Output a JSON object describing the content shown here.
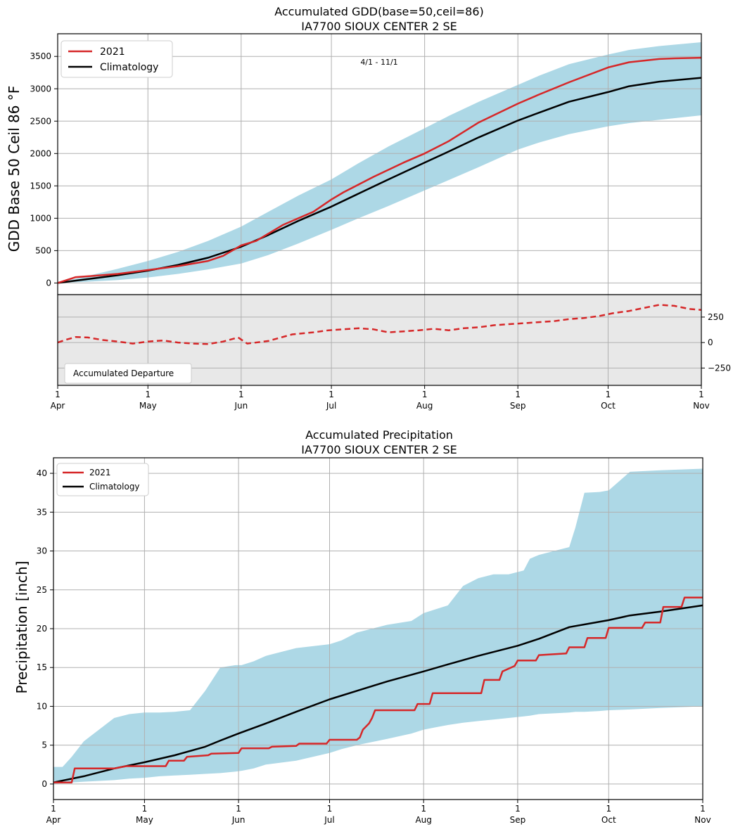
{
  "chart_data": [
    {
      "type": "line",
      "title": "Accumulated GDD(base=50,ceil=86)",
      "subtitle": "IA7700 SIOUX CENTER 2 SE",
      "annotation": "4/1 - 11/1",
      "ylabel": "GDD Base 50 Ceil 86 °F",
      "ylim": [
        -180,
        3850
      ],
      "yticks": [
        0,
        500,
        1000,
        1500,
        2000,
        2500,
        3000,
        3500
      ],
      "xlim": [
        0,
        214
      ],
      "xticks": [
        {
          "x": 0,
          "day": "1",
          "month": "Apr"
        },
        {
          "x": 30,
          "day": "1",
          "month": "May"
        },
        {
          "x": 61,
          "day": "1",
          "month": "Jun"
        },
        {
          "x": 91,
          "day": "1",
          "month": "Jul"
        },
        {
          "x": 122,
          "day": "1",
          "month": "Aug"
        },
        {
          "x": 153,
          "day": "1",
          "month": "Sep"
        },
        {
          "x": 183,
          "day": "1",
          "month": "Oct"
        },
        {
          "x": 214,
          "day": "1",
          "month": "Nov"
        }
      ],
      "grid": true,
      "legend_position": "top-left",
      "series": [
        {
          "name": "2021",
          "color": "#d62728",
          "style": "solid",
          "x": [
            0,
            6,
            12,
            20,
            30,
            40,
            50,
            55,
            61,
            66,
            75,
            85,
            91,
            95,
            105,
            115,
            122,
            130,
            140,
            153,
            160,
            170,
            183,
            190,
            200,
            205,
            214
          ],
          "y": [
            0,
            90,
            110,
            140,
            200,
            260,
            340,
            420,
            580,
            650,
            900,
            1100,
            1290,
            1400,
            1640,
            1860,
            2000,
            2190,
            2480,
            2770,
            2910,
            3100,
            3330,
            3410,
            3460,
            3470,
            3480
          ]
        },
        {
          "name": "Climatology",
          "color": "#000000",
          "style": "solid",
          "x": [
            0,
            10,
            20,
            30,
            40,
            50,
            61,
            70,
            80,
            91,
            100,
            110,
            122,
            130,
            140,
            153,
            160,
            170,
            183,
            190,
            200,
            214
          ],
          "y": [
            0,
            60,
            120,
            190,
            280,
            390,
            560,
            740,
            960,
            1180,
            1380,
            1600,
            1860,
            2030,
            2250,
            2510,
            2630,
            2800,
            2950,
            3040,
            3110,
            3170
          ]
        }
      ],
      "range_band": {
        "color": "#add8e6",
        "x": [
          0,
          10,
          20,
          30,
          40,
          50,
          61,
          70,
          80,
          91,
          100,
          110,
          122,
          130,
          140,
          153,
          160,
          170,
          183,
          190,
          200,
          214
        ],
        "upper": [
          0,
          110,
          220,
          340,
          480,
          650,
          870,
          1100,
          1350,
          1600,
          1850,
          2110,
          2390,
          2580,
          2800,
          3060,
          3200,
          3380,
          3530,
          3600,
          3660,
          3720
        ],
        "lower": [
          0,
          20,
          45,
          85,
          140,
          210,
          300,
          430,
          610,
          820,
          1000,
          1190,
          1430,
          1590,
          1790,
          2060,
          2170,
          2300,
          2420,
          2470,
          2520,
          2590
        ]
      }
    },
    {
      "type": "line",
      "title": "",
      "legend_label": "Accumulated Departure",
      "ylim": [
        -420,
        470
      ],
      "yticks": [
        -250,
        0,
        250
      ],
      "ytick_labels": [
        "−250",
        "0",
        "250"
      ],
      "y_axis_side": "right",
      "background": "#e8e8e8",
      "grid": true,
      "series": [
        {
          "name": "Accumulated Departure",
          "color": "#d62728",
          "style": "dashed",
          "x": [
            0,
            3,
            6,
            10,
            15,
            20,
            25,
            30,
            35,
            40,
            45,
            50,
            55,
            60,
            63,
            70,
            78,
            85,
            90,
            95,
            100,
            105,
            110,
            115,
            120,
            125,
            130,
            135,
            140,
            145,
            150,
            155,
            160,
            165,
            170,
            175,
            180,
            185,
            190,
            195,
            200,
            205,
            210,
            214
          ],
          "y": [
            0,
            30,
            55,
            50,
            25,
            10,
            -10,
            10,
            20,
            0,
            -10,
            -15,
            10,
            50,
            -10,
            15,
            80,
            100,
            120,
            130,
            140,
            130,
            100,
            110,
            120,
            135,
            120,
            140,
            150,
            170,
            180,
            190,
            200,
            210,
            230,
            240,
            260,
            290,
            310,
            340,
            370,
            360,
            330,
            320
          ]
        }
      ]
    },
    {
      "type": "line",
      "title": "Accumulated Precipitation",
      "subtitle": "IA7700 SIOUX CENTER 2 SE",
      "ylabel": "Precipitation [inch]",
      "ylim": [
        -2,
        42
      ],
      "yticks": [
        0,
        5,
        10,
        15,
        20,
        25,
        30,
        35,
        40
      ],
      "xlim": [
        0,
        214
      ],
      "xticks": [
        {
          "x": 0,
          "day": "1",
          "month": "Apr"
        },
        {
          "x": 30,
          "day": "1",
          "month": "May"
        },
        {
          "x": 61,
          "day": "1",
          "month": "Jun"
        },
        {
          "x": 91,
          "day": "1",
          "month": "Jul"
        },
        {
          "x": 122,
          "day": "1",
          "month": "Aug"
        },
        {
          "x": 153,
          "day": "1",
          "month": "Sep"
        },
        {
          "x": 183,
          "day": "1",
          "month": "Oct"
        },
        {
          "x": 214,
          "day": "1",
          "month": "Nov"
        }
      ],
      "grid": true,
      "legend_position": "top-left",
      "series": [
        {
          "name": "2021",
          "color": "#d62728",
          "style": "step",
          "x": [
            0,
            6,
            7,
            20,
            24,
            37,
            38,
            43,
            44,
            51,
            52,
            61,
            62,
            71,
            72,
            80,
            81,
            90,
            91,
            100,
            101,
            102,
            104,
            105,
            106,
            119,
            120,
            124,
            125,
            141,
            142,
            147,
            148,
            152,
            153,
            159,
            160,
            169,
            170,
            175,
            176,
            182,
            183,
            194,
            195,
            200,
            201,
            207,
            208,
            214
          ],
          "y": [
            0.2,
            0.2,
            2.0,
            2.0,
            2.3,
            2.3,
            3.0,
            3.0,
            3.5,
            3.7,
            3.9,
            4.0,
            4.6,
            4.6,
            4.8,
            4.9,
            5.2,
            5.2,
            5.7,
            5.7,
            6.0,
            7.0,
            7.8,
            8.5,
            9.5,
            9.5,
            10.3,
            10.3,
            11.7,
            11.7,
            13.4,
            13.4,
            14.5,
            15.2,
            15.9,
            15.9,
            16.6,
            16.8,
            17.6,
            17.6,
            18.8,
            18.8,
            20.1,
            20.1,
            20.8,
            20.8,
            22.8,
            22.8,
            24.0,
            24.0
          ]
        },
        {
          "name": "Climatology",
          "color": "#000000",
          "style": "solid",
          "x": [
            0,
            10,
            20,
            30,
            40,
            50,
            55,
            61,
            70,
            80,
            91,
            100,
            110,
            122,
            130,
            140,
            153,
            160,
            170,
            183,
            190,
            200,
            214
          ],
          "y": [
            0.2,
            1.0,
            2.0,
            2.8,
            3.7,
            4.8,
            5.6,
            6.5,
            7.8,
            9.3,
            10.9,
            12.0,
            13.2,
            14.5,
            15.4,
            16.5,
            17.8,
            18.7,
            20.2,
            21.1,
            21.7,
            22.2,
            23.0
          ]
        }
      ],
      "range_band": {
        "color": "#add8e6",
        "x": [
          0,
          3,
          6,
          10,
          15,
          20,
          25,
          30,
          35,
          40,
          45,
          50,
          55,
          60,
          62,
          66,
          70,
          80,
          91,
          95,
          100,
          110,
          118,
          122,
          126,
          130,
          135,
          140,
          145,
          150,
          155,
          157,
          160,
          165,
          170,
          172,
          175,
          180,
          183,
          190,
          200,
          214
        ],
        "upper": [
          2.2,
          2.2,
          3.5,
          5.5,
          7.0,
          8.5,
          9.0,
          9.2,
          9.2,
          9.3,
          9.5,
          12.0,
          15.0,
          15.3,
          15.3,
          15.8,
          16.5,
          17.5,
          18.0,
          18.5,
          19.5,
          20.5,
          21.0,
          22.0,
          22.5,
          23.0,
          25.5,
          26.5,
          27.0,
          27.0,
          27.5,
          29.0,
          29.5,
          30.0,
          30.5,
          33.0,
          37.5,
          37.6,
          37.8,
          40.2,
          40.4,
          40.6
        ],
        "lower": [
          0,
          0.1,
          0.2,
          0.3,
          0.4,
          0.5,
          0.7,
          0.8,
          1.0,
          1.1,
          1.2,
          1.3,
          1.4,
          1.6,
          1.7,
          2.0,
          2.5,
          3.0,
          4.0,
          4.5,
          5.0,
          5.8,
          6.5,
          7.0,
          7.3,
          7.6,
          7.9,
          8.1,
          8.3,
          8.5,
          8.7,
          8.8,
          9.0,
          9.1,
          9.2,
          9.3,
          9.3,
          9.4,
          9.5,
          9.6,
          9.8,
          10.0
        ]
      }
    }
  ]
}
